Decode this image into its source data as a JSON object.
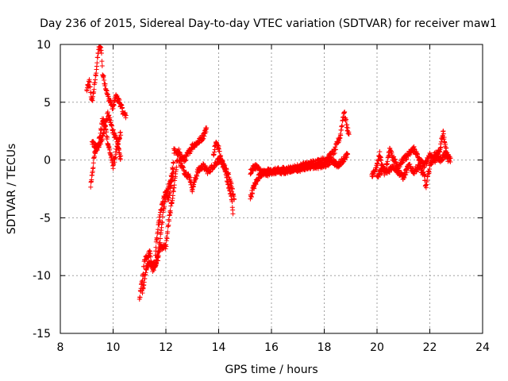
{
  "chart_data": {
    "type": "scatter",
    "title": "Day 236 of 2015, Sidereal Day-to-day VTEC variation (SDTVAR) for receiver maw1",
    "xlabel": "GPS time / hours",
    "ylabel": "SDTVAR / TECUs",
    "xlim": [
      8,
      24
    ],
    "ylim": [
      -15,
      10
    ],
    "x_ticks": [
      8,
      10,
      12,
      14,
      16,
      18,
      20,
      22,
      24
    ],
    "y_ticks": [
      -15,
      -10,
      -5,
      0,
      5,
      10
    ],
    "x_tick_labels": [
      "8",
      "10",
      "12",
      "14",
      "16",
      "18",
      "20",
      "22",
      "24"
    ],
    "y_tick_labels": [
      "-15",
      "-10",
      "-5",
      "0",
      "5",
      "10"
    ],
    "grid": true,
    "marker": "+",
    "color": "#ff0000",
    "series": [
      {
        "name": "SDTVAR",
        "trace_segments": [
          [
            [
              9.0,
              6.0
            ],
            [
              9.1,
              6.8
            ],
            [
              9.2,
              5.0
            ],
            [
              9.3,
              6.5
            ],
            [
              9.45,
              9.6
            ],
            [
              9.55,
              9.7
            ],
            [
              9.6,
              7.5
            ],
            [
              9.7,
              6.5
            ],
            [
              9.8,
              5.5
            ],
            [
              9.9,
              5.0
            ],
            [
              10.0,
              4.5
            ],
            [
              10.1,
              5.5
            ],
            [
              10.25,
              5.0
            ],
            [
              10.4,
              4.0
            ],
            [
              10.5,
              3.8
            ]
          ],
          [
            [
              9.15,
              -2.2
            ],
            [
              9.3,
              0.5
            ],
            [
              9.5,
              2.0
            ],
            [
              9.6,
              3.5
            ],
            [
              9.7,
              3.0
            ],
            [
              9.8,
              1.5
            ],
            [
              9.9,
              0.5
            ],
            [
              10.0,
              -0.5
            ],
            [
              10.1,
              0.5
            ],
            [
              10.2,
              1.5
            ],
            [
              10.3,
              2.5
            ]
          ],
          [
            [
              9.2,
              1.5
            ],
            [
              9.4,
              1.0
            ],
            [
              9.6,
              2.0
            ],
            [
              9.8,
              4.0
            ],
            [
              10.0,
              2.5
            ],
            [
              10.15,
              1.5
            ],
            [
              10.3,
              0.0
            ]
          ],
          [
            [
              11.0,
              -12.0
            ],
            [
              11.1,
              -10.5
            ],
            [
              11.2,
              -8.5
            ],
            [
              11.4,
              -8.0
            ],
            [
              11.5,
              -9.5
            ],
            [
              11.7,
              -8.5
            ],
            [
              11.8,
              -6.5
            ],
            [
              11.9,
              -4.5
            ],
            [
              12.0,
              -3.0
            ],
            [
              12.1,
              -2.5
            ],
            [
              12.2,
              -1.5
            ],
            [
              12.3,
              0.0
            ]
          ],
          [
            [
              11.1,
              -11.5
            ],
            [
              11.3,
              -9.0
            ],
            [
              11.6,
              -9.0
            ],
            [
              11.8,
              -7.5
            ],
            [
              12.0,
              -7.5
            ],
            [
              12.1,
              -5.5
            ],
            [
              12.2,
              -4.0
            ],
            [
              12.3,
              -2.5
            ],
            [
              12.4,
              -0.5
            ],
            [
              12.5,
              1.0
            ]
          ],
          [
            [
              11.6,
              -8.0
            ],
            [
              11.7,
              -6.0
            ],
            [
              11.8,
              -4.5
            ],
            [
              11.9,
              -3.5
            ],
            [
              12.0,
              -2.8
            ],
            [
              12.1,
              -3.5
            ],
            [
              12.2,
              -2.0
            ],
            [
              12.3,
              -1.0
            ]
          ],
          [
            [
              12.3,
              0.8
            ],
            [
              12.5,
              0.5
            ],
            [
              12.7,
              0.0
            ],
            [
              12.9,
              0.8
            ],
            [
              13.0,
              1.2
            ],
            [
              13.2,
              1.5
            ],
            [
              13.4,
              2.0
            ],
            [
              13.55,
              2.8
            ]
          ],
          [
            [
              12.5,
              0.0
            ],
            [
              12.7,
              -1.0
            ],
            [
              12.9,
              -1.5
            ],
            [
              13.0,
              -2.5
            ],
            [
              13.2,
              -1.0
            ],
            [
              13.4,
              -0.5
            ],
            [
              13.6,
              -1.0
            ],
            [
              13.8,
              -0.5
            ],
            [
              14.0,
              0.0
            ],
            [
              14.2,
              -0.5
            ],
            [
              14.4,
              -1.5
            ],
            [
              14.5,
              -2.5
            ],
            [
              14.6,
              -3.5
            ]
          ],
          [
            [
              13.8,
              0.5
            ],
            [
              13.9,
              1.5
            ],
            [
              14.0,
              1.0
            ],
            [
              14.1,
              0.0
            ],
            [
              14.2,
              -0.5
            ],
            [
              14.3,
              -1.5
            ],
            [
              14.4,
              -2.5
            ],
            [
              14.5,
              -3.5
            ],
            [
              14.55,
              -4.7
            ]
          ],
          [
            [
              15.2,
              -3.3
            ],
            [
              15.3,
              -2.5
            ],
            [
              15.4,
              -2.0
            ],
            [
              15.5,
              -1.5
            ],
            [
              15.6,
              -1.2
            ],
            [
              15.8,
              -1.0
            ],
            [
              16.0,
              -1.0
            ],
            [
              16.5,
              -1.0
            ],
            [
              17.0,
              -0.6
            ],
            [
              17.5,
              -0.3
            ],
            [
              18.0,
              0.0
            ],
            [
              18.2,
              0.3
            ],
            [
              18.4,
              0.8
            ],
            [
              18.5,
              1.5
            ],
            [
              18.6,
              2.0
            ],
            [
              18.7,
              3.5
            ],
            [
              18.75,
              4.2
            ],
            [
              18.85,
              3.0
            ],
            [
              18.95,
              2.0
            ]
          ],
          [
            [
              15.2,
              -1.0
            ],
            [
              15.4,
              -0.5
            ],
            [
              15.6,
              -1.0
            ],
            [
              15.8,
              -1.2
            ],
            [
              16.0,
              -1.0
            ],
            [
              16.5,
              -0.8
            ],
            [
              17.0,
              -0.8
            ],
            [
              17.5,
              -0.5
            ],
            [
              18.0,
              -0.5
            ],
            [
              18.3,
              0.0
            ],
            [
              18.5,
              -0.5
            ],
            [
              18.7,
              0.0
            ],
            [
              18.9,
              0.5
            ]
          ],
          [
            [
              19.8,
              -1.5
            ],
            [
              19.9,
              -1.0
            ],
            [
              20.0,
              -0.5
            ],
            [
              20.1,
              0.5
            ],
            [
              20.2,
              -0.5
            ],
            [
              20.3,
              -1.2
            ],
            [
              20.4,
              0.0
            ],
            [
              20.5,
              1.0
            ],
            [
              20.6,
              0.2
            ],
            [
              20.8,
              -0.5
            ],
            [
              21.0,
              0.0
            ],
            [
              21.2,
              0.5
            ],
            [
              21.4,
              1.0
            ],
            [
              21.6,
              0.0
            ],
            [
              21.8,
              -0.5
            ],
            [
              22.0,
              0.5
            ],
            [
              22.2,
              0.0
            ],
            [
              22.4,
              1.0
            ],
            [
              22.5,
              2.5
            ],
            [
              22.6,
              1.0
            ],
            [
              22.7,
              0.0
            ]
          ],
          [
            [
              20.0,
              -1.5
            ],
            [
              20.2,
              -0.8
            ],
            [
              20.4,
              -1.0
            ],
            [
              20.6,
              -0.5
            ],
            [
              20.8,
              -1.0
            ],
            [
              21.0,
              -1.5
            ],
            [
              21.2,
              -0.5
            ],
            [
              21.4,
              -1.0
            ],
            [
              21.6,
              -0.5
            ],
            [
              21.8,
              -1.5
            ],
            [
              21.85,
              -2.4
            ],
            [
              22.0,
              -0.5
            ],
            [
              22.2,
              0.5
            ],
            [
              22.4,
              0.0
            ],
            [
              22.6,
              0.5
            ],
            [
              22.8,
              0.0
            ]
          ]
        ]
      }
    ]
  }
}
